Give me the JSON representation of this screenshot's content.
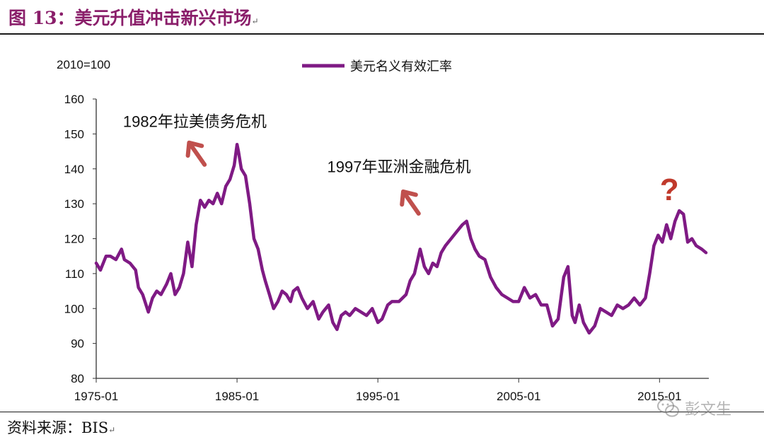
{
  "figure": {
    "title": "图 13：美元升值冲击新兴市场",
    "source": "资料来源：BIS",
    "paragraph_mark": "↵",
    "watermark": "彭文生",
    "watermark_icon": "wechat-icon"
  },
  "chart_data": {
    "type": "line",
    "unit_label": "2010=100",
    "ylim": [
      80,
      160
    ],
    "yticks": [
      80,
      90,
      100,
      110,
      120,
      130,
      140,
      150,
      160
    ],
    "xlim": [
      1975.0,
      2018.5
    ],
    "xticks": [
      1975,
      1985,
      1995,
      2005,
      2015
    ],
    "xtick_labels": [
      "1975-01",
      "1985-01",
      "1995-01",
      "2005-01",
      "2015-01"
    ],
    "grid": false,
    "legend_position": "top-center",
    "series": [
      {
        "name": "美元名义有效汇率",
        "color": "#7f1a84",
        "x": [
          1975.0,
          1975.3,
          1975.7,
          1976.0,
          1976.4,
          1976.8,
          1977.0,
          1977.4,
          1977.8,
          1978.0,
          1978.3,
          1978.7,
          1979.0,
          1979.3,
          1979.6,
          1980.0,
          1980.3,
          1980.6,
          1980.9,
          1981.2,
          1981.5,
          1981.8,
          1982.1,
          1982.4,
          1982.7,
          1983.0,
          1983.3,
          1983.6,
          1983.9,
          1984.2,
          1984.5,
          1984.8,
          1985.0,
          1985.1,
          1985.3,
          1985.6,
          1985.9,
          1986.2,
          1986.5,
          1986.8,
          1987.0,
          1987.3,
          1987.6,
          1987.9,
          1988.2,
          1988.5,
          1988.8,
          1989.0,
          1989.3,
          1989.6,
          1990.0,
          1990.4,
          1990.8,
          1991.1,
          1991.5,
          1991.8,
          1992.1,
          1992.4,
          1992.7,
          1993.0,
          1993.4,
          1993.8,
          1994.2,
          1994.6,
          1995.0,
          1995.3,
          1995.7,
          1996.0,
          1996.5,
          1997.0,
          1997.3,
          1997.6,
          1998.0,
          1998.3,
          1998.6,
          1998.9,
          1999.2,
          1999.5,
          1999.8,
          2000.2,
          2000.6,
          2001.0,
          2001.3,
          2001.6,
          2001.9,
          2002.2,
          2002.6,
          2003.0,
          2003.4,
          2003.8,
          2004.2,
          2004.6,
          2005.0,
          2005.4,
          2005.8,
          2006.2,
          2006.6,
          2007.0,
          2007.4,
          2007.8,
          2008.2,
          2008.5,
          2008.8,
          2009.0,
          2009.3,
          2009.6,
          2010.0,
          2010.4,
          2010.8,
          2011.2,
          2011.6,
          2012.0,
          2012.4,
          2012.8,
          2013.2,
          2013.6,
          2014.0,
          2014.3,
          2014.6,
          2014.9,
          2015.2,
          2015.5,
          2015.8,
          2016.1,
          2016.4,
          2016.7,
          2017.0,
          2017.3,
          2017.6,
          2018.0,
          2018.3
        ],
        "y": [
          113,
          111,
          115,
          115,
          114,
          117,
          114,
          113,
          111,
          106,
          104,
          99,
          103,
          105,
          104,
          107,
          110,
          104,
          106,
          110,
          119,
          112,
          124,
          131,
          129,
          131,
          130,
          133,
          130,
          135,
          137,
          141,
          147,
          145,
          140,
          138,
          130,
          120,
          117,
          111,
          108,
          104,
          100,
          102,
          105,
          104,
          102,
          105,
          106,
          103,
          100,
          102,
          97,
          99,
          101,
          96,
          94,
          98,
          99,
          98,
          100,
          99,
          98,
          100,
          96,
          97,
          101,
          102,
          102,
          104,
          108,
          110,
          117,
          112,
          110,
          113,
          112,
          116,
          118,
          120,
          122,
          124,
          125,
          120,
          117,
          115,
          114,
          109,
          106,
          104,
          103,
          102,
          102,
          106,
          103,
          104,
          101,
          101,
          95,
          97,
          109,
          112,
          98,
          96,
          101,
          96,
          93,
          95,
          100,
          99,
          98,
          101,
          100,
          101,
          103,
          101,
          103,
          110,
          118,
          121,
          119,
          124,
          120,
          125,
          128,
          127,
          119,
          120,
          118,
          117,
          116
        ]
      }
    ],
    "annotations": [
      {
        "text": "1982年拉美债务危机",
        "x": 1982.0,
        "y": 152,
        "arrow": {
          "x": 1981.6,
          "y": 147.5
        }
      },
      {
        "text": "1997年亚洲金融危机",
        "x": 1996.5,
        "y": 139,
        "arrow": {
          "x": 1996.8,
          "y": 133.5
        }
      },
      {
        "text": "?",
        "x": 2015.7,
        "y": 131
      }
    ],
    "annotation_colors": {
      "arrow": "#c0504d",
      "question": "#c0392b"
    }
  }
}
